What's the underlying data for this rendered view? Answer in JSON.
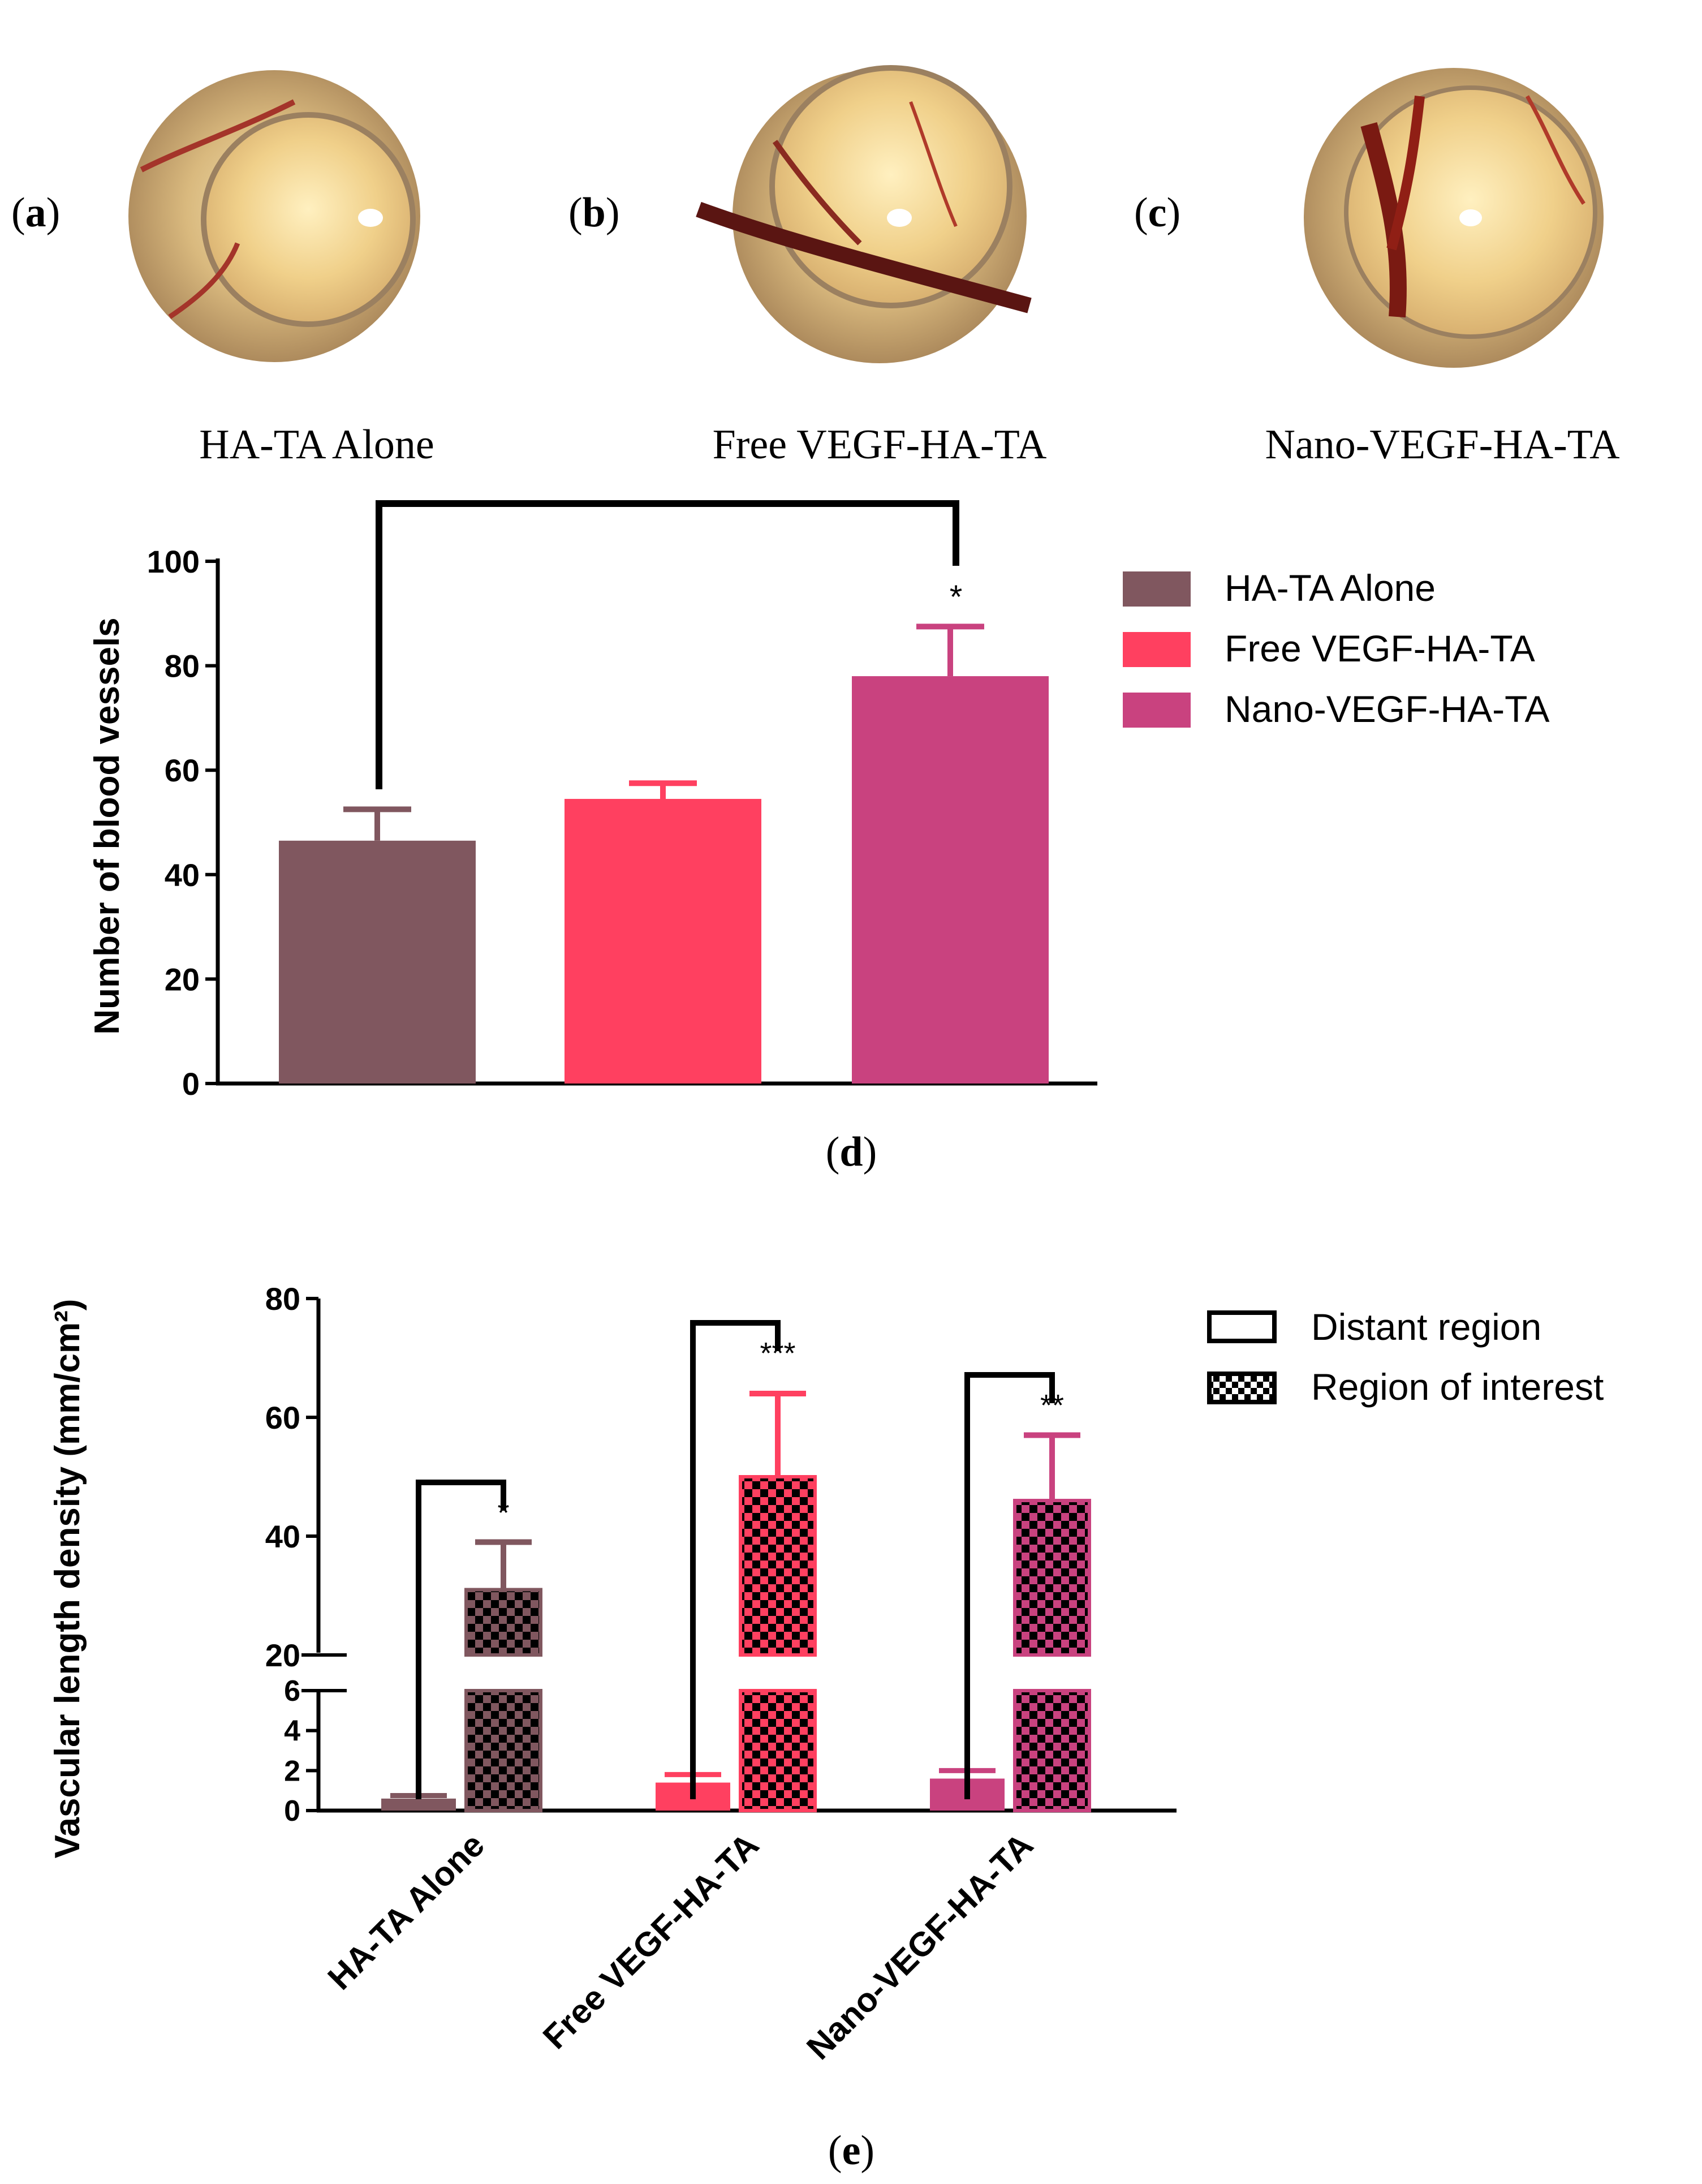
{
  "figure": {
    "panel_tags": [
      "a",
      "b",
      "c",
      "d",
      "e"
    ],
    "photo_captions": [
      "HA-TA Alone",
      "Free VEGF-HA-TA",
      "Nano-VEGF-HA-TA"
    ],
    "photo_descriptions": [
      "cam-photo",
      "cam-photo",
      "cam-photo"
    ]
  },
  "colors": {
    "ha_ta_alone": "#80575f",
    "free_vegf": "#ff4060",
    "nano_vegf": "#c9427f",
    "axis": "#000000"
  },
  "chart_data": [
    {
      "panel": "d",
      "type": "bar",
      "ylabel": "Number of blood vessels",
      "ylim": [
        0,
        100
      ],
      "yticks": [
        "0",
        "20",
        "40",
        "60",
        "80",
        "100"
      ],
      "categories": [
        "HA-TA Alone",
        "Free VEGF-HA-TA",
        "Nano-VEGF-HA-TA"
      ],
      "values": [
        46.5,
        54.5,
        78
      ],
      "errors": [
        6,
        3,
        9.5
      ],
      "legend": [
        "HA-TA Alone",
        "Free VEGF-HA-TA",
        "Nano-VEGF-HA-TA"
      ],
      "legend_position": "right",
      "significance": [
        {
          "from": "HA-TA Alone",
          "to": "Nano-VEGF-HA-TA",
          "label": "*"
        }
      ]
    },
    {
      "panel": "e",
      "type": "bar",
      "ylabel": "Vascular length density (mm/cm²)",
      "y_axis_break": {
        "lower": [
          0,
          6
        ],
        "upper": [
          20,
          80
        ]
      },
      "yticks_lower": [
        "0",
        "2",
        "4",
        "6"
      ],
      "yticks_upper": [
        "20",
        "40",
        "60",
        "80"
      ],
      "categories": [
        "HA-TA Alone",
        "Free VEGF-HA-TA",
        "Nano-VEGF-HA-TA"
      ],
      "series": [
        {
          "name": "Distant region",
          "pattern": "solid",
          "values": [
            0.6,
            1.4,
            1.6
          ],
          "errors": [
            0.15,
            0.4,
            0.4
          ]
        },
        {
          "name": "Region of interest",
          "pattern": "checkered",
          "values": [
            31,
            50,
            46
          ],
          "errors": [
            8,
            14,
            11
          ]
        }
      ],
      "legend_position": "top-right",
      "significance": [
        {
          "category": "HA-TA Alone",
          "label": "*"
        },
        {
          "category": "Free VEGF-HA-TA",
          "label": "***"
        },
        {
          "category": "Nano-VEGF-HA-TA",
          "label": "**"
        }
      ]
    }
  ]
}
